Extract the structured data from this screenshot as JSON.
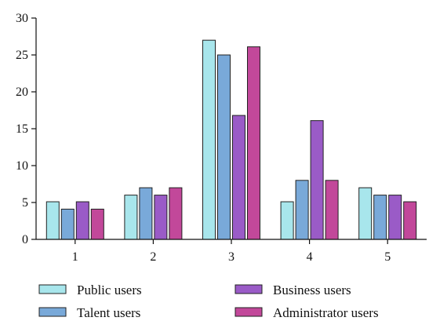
{
  "chart_data": {
    "type": "bar",
    "title": "",
    "xlabel": "",
    "ylabel": "",
    "categories": [
      "1",
      "2",
      "3",
      "4",
      "5"
    ],
    "ylim": [
      0,
      30
    ],
    "yticks": [
      0,
      5,
      10,
      15,
      20,
      25,
      30
    ],
    "grid": false,
    "legend_position": "bottom",
    "series": [
      {
        "name": "Public users",
        "color": "#a8e6ec",
        "values": [
          5.1,
          6,
          27,
          5.1,
          7
        ]
      },
      {
        "name": "Talent users",
        "color": "#79a9d9",
        "values": [
          4.1,
          7,
          25,
          8,
          6
        ]
      },
      {
        "name": "Business users",
        "color": "#9a5bc7",
        "values": [
          5.1,
          6,
          16.8,
          16.1,
          6
        ]
      },
      {
        "name": "Administrator users",
        "color": "#c2489a",
        "values": [
          4.1,
          7,
          26.1,
          8,
          5.1
        ]
      }
    ]
  }
}
